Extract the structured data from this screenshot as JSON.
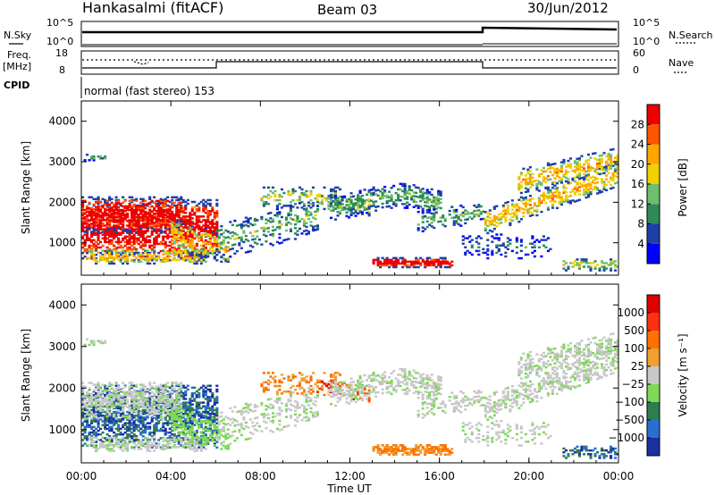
{
  "header": {
    "station": "Hankasalmi (fitACF)",
    "beam": "Beam 03",
    "date": "30/Jun/2012"
  },
  "strip_labels": {
    "nsky": "N.Sky",
    "freq_line1": "Freq.",
    "freq_line2": "[MHz]",
    "cpid": "CPID",
    "nsearch": "N.Search",
    "nave": "Nave",
    "left_top_tick": "10^5",
    "left_bottom_tick": "10^0",
    "right_top_tick": "10^5",
    "right_bottom_tick": "10^0",
    "freq_top": "18",
    "freq_bottom": "8",
    "nave_top": "60",
    "nave_bottom": "0"
  },
  "cpid_text": "normal (fast stereo) 153",
  "chart_data": [
    {
      "type": "heatmap",
      "name": "power",
      "ylabel": "Slant Range [km]",
      "yticks": [
        "1000",
        "2000",
        "3000",
        "4000"
      ],
      "ylim": [
        200,
        4500
      ],
      "xticks": [
        "00:00",
        "04:00",
        "08:00",
        "12:00",
        "16:00",
        "20:00",
        "00:00"
      ],
      "xlim_hours": [
        0,
        24
      ],
      "colorbar": {
        "label": "Power [dB]",
        "ticks": [
          "4",
          "8",
          "12",
          "16",
          "20",
          "24",
          "28"
        ],
        "colors": [
          "#0000ff",
          "#1f3fa8",
          "#2e8b57",
          "#6ebe6e",
          "#f0d000",
          "#ffa500",
          "#ff5500",
          "#ee0000"
        ]
      }
    },
    {
      "type": "heatmap",
      "name": "velocity",
      "ylabel": "Slant Range [km]",
      "yticks": [
        "1000",
        "2000",
        "3000",
        "4000"
      ],
      "ylim": [
        200,
        4500
      ],
      "xticks": [
        "00:00",
        "04:00",
        "08:00",
        "12:00",
        "16:00",
        "20:00",
        "00:00"
      ],
      "xlim_hours": [
        0,
        24
      ],
      "xlabel": "Time UT",
      "colorbar": {
        "label": "Velocity [m s⁻¹]",
        "ticks": [
          "1000",
          "500",
          "100",
          "25",
          "−25",
          "−100",
          "−500",
          "−1000"
        ],
        "colors": [
          "#1a2fa0",
          "#2a6fd0",
          "#2e7d4f",
          "#7ed957",
          "#c8c8c8",
          "#f0a030",
          "#ff7000",
          "#ff3010",
          "#e00000"
        ]
      }
    }
  ]
}
